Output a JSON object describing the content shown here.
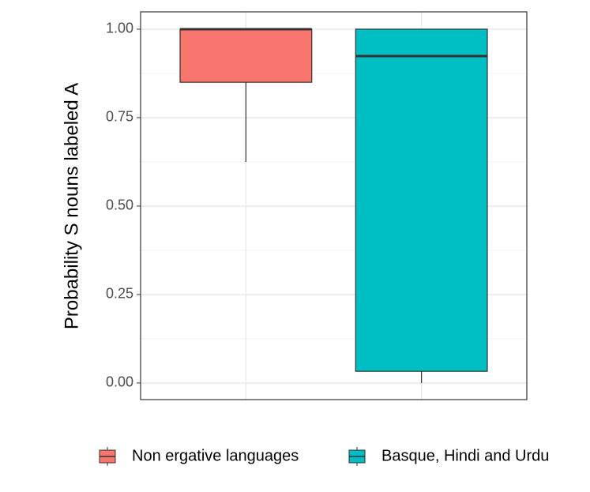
{
  "chart_data": {
    "type": "boxplot",
    "y_label": "Probability S nouns labeled A",
    "ylim": [
      -0.047,
      1.049
    ],
    "yticks": [
      {
        "value": 0,
        "label": "0.00"
      },
      {
        "value": 0.25,
        "label": "0.25"
      },
      {
        "value": 0.5,
        "label": "0.50"
      },
      {
        "value": 0.75,
        "label": "0.75"
      },
      {
        "value": 1,
        "label": "1.00"
      }
    ],
    "minor_yticks": [
      0.125,
      0.375,
      0.625,
      0.875
    ],
    "grid": true,
    "legend": "bottom",
    "series": [
      {
        "name": "Non ergative languages",
        "color": "#f8766d",
        "min": 0.625,
        "q1": 0.85,
        "median": 1.0,
        "q3": 1.0,
        "max": 1.0
      },
      {
        "name": "Basque, Hindi and Urdu",
        "color": "#00bfc4",
        "min": 0.0,
        "q1": 0.033,
        "median": 0.924,
        "q3": 1.0,
        "max": 1.0
      }
    ]
  }
}
